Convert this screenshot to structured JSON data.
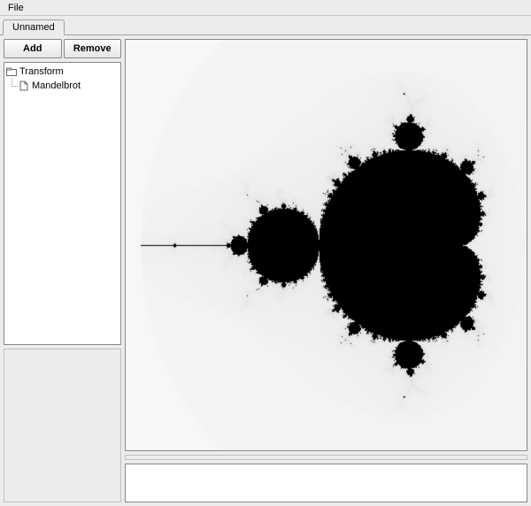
{
  "menubar": {
    "file": "File"
  },
  "tabs": {
    "active": "Unnamed"
  },
  "toolbar": {
    "add_label": "Add",
    "remove_label": "Remove"
  },
  "tree": {
    "root_label": "Transform",
    "child_label": "Mandelbrot"
  },
  "fractal": {
    "type": "mandelbrot",
    "xmin": -2.1,
    "xmax": 0.7,
    "ymin": -1.4,
    "ymax": 1.4,
    "max_iter": 80,
    "inside_color": "#000000",
    "outside_far": "#ffffff",
    "outside_near": "#d8d8d8",
    "background": "#f7f7f7"
  },
  "colors": {
    "window_bg": "#ececec",
    "panel_bg": "#ffffff",
    "border": "#888888"
  }
}
